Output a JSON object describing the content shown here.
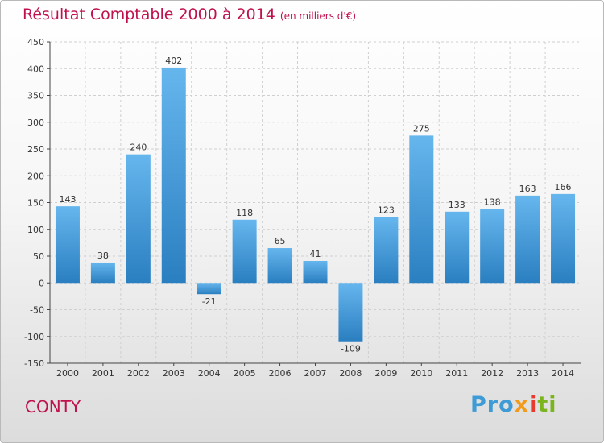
{
  "title": "Résultat Comptable 2000 à 2014",
  "title_unit": "(en milliers d'€)",
  "town": "CONTY",
  "logo": [
    "Pro",
    "x",
    "i",
    "ti"
  ],
  "colors": {
    "title": "#c0114f",
    "bar_light": "#66b6ee",
    "bar_dark": "#2a7fc0",
    "grid": "#cfcfcf",
    "axis": "#444444"
  },
  "chart_data": {
    "type": "bar",
    "categories": [
      "2000",
      "2001",
      "2002",
      "2003",
      "2004",
      "2005",
      "2006",
      "2007",
      "2008",
      "2009",
      "2010",
      "2011",
      "2012",
      "2013",
      "2014"
    ],
    "values": [
      143,
      38,
      240,
      402,
      -21,
      118,
      65,
      41,
      -109,
      123,
      275,
      133,
      138,
      163,
      166
    ],
    "title": "Résultat Comptable 2000 à 2014",
    "xlabel": "",
    "ylabel": "",
    "ylim": [
      -150,
      450
    ],
    "yticks": [
      -150,
      -100,
      -50,
      0,
      50,
      100,
      150,
      200,
      250,
      300,
      350,
      400,
      450
    ],
    "grid": true,
    "legend": "none"
  }
}
